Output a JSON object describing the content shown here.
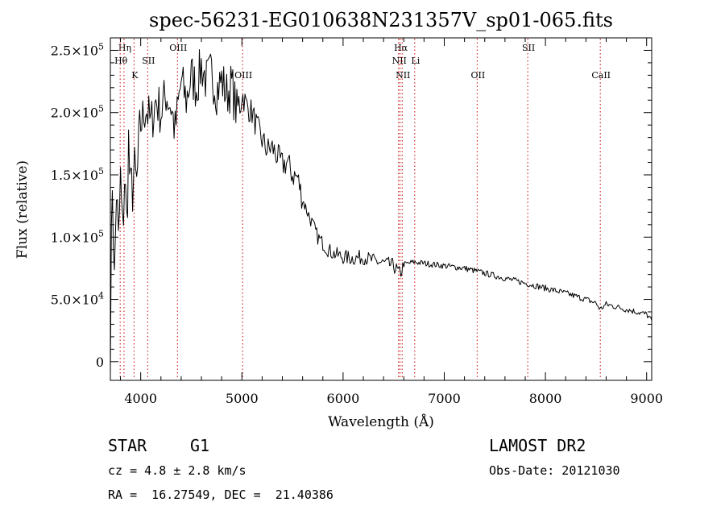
{
  "chart_data": {
    "type": "line",
    "title": "spec-56231-EG010638N231357V_sp01-065.fits",
    "xlabel": "Wavelength (Å)",
    "ylabel": "Flux (relative)",
    "xlim": [
      3700,
      9050
    ],
    "ylim": [
      -15000,
      260000
    ],
    "x_ticks": [
      4000,
      5000,
      6000,
      7000,
      8000,
      9000
    ],
    "x_tick_labels": [
      "4000",
      "5000",
      "6000",
      "7000",
      "8000",
      "9000"
    ],
    "y_ticks": [
      {
        "value": 0,
        "mantissa": "0",
        "exponent": ""
      },
      {
        "value": 50000,
        "mantissa": "5.0×10",
        "exponent": "4"
      },
      {
        "value": 100000,
        "mantissa": "1.0×10",
        "exponent": "5"
      },
      {
        "value": 150000,
        "mantissa": "1.5×10",
        "exponent": "5"
      },
      {
        "value": 200000,
        "mantissa": "2.0×10",
        "exponent": "5"
      },
      {
        "value": 250000,
        "mantissa": "2.5×10",
        "exponent": "5"
      }
    ],
    "line_color": "#000000",
    "marker_line_color": "#cc0000",
    "spectrum": {
      "x": [
        3700,
        3720,
        3740,
        3760,
        3780,
        3800,
        3820,
        3840,
        3860,
        3880,
        3900,
        3930,
        3960,
        4000,
        4050,
        4100,
        4150,
        4200,
        4250,
        4300,
        4340,
        4400,
        4450,
        4500,
        4550,
        4600,
        4650,
        4700,
        4750,
        4800,
        4850,
        4900,
        4950,
        5000,
        5050,
        5100,
        5150,
        5200,
        5250,
        5300,
        5350,
        5400,
        5450,
        5500,
        5550,
        5600,
        5650,
        5700,
        5750,
        5800,
        5850,
        5900,
        6000,
        6100,
        6200,
        6300,
        6400,
        6500,
        6563,
        6600,
        6700,
        6800,
        6900,
        7000,
        7200,
        7400,
        7600,
        7800,
        8000,
        8200,
        8400,
        8500,
        8540,
        8600,
        8700,
        8800,
        8900,
        9000,
        9050
      ],
      "y": [
        20000,
        150000,
        60000,
        140000,
        90000,
        145000,
        100000,
        150000,
        110000,
        175000,
        130000,
        150000,
        140000,
        190000,
        205000,
        190000,
        210000,
        200000,
        215000,
        205000,
        185000,
        225000,
        210000,
        230000,
        220000,
        238000,
        225000,
        232000,
        218000,
        226000,
        215000,
        222000,
        200000,
        215000,
        205000,
        200000,
        188000,
        178000,
        170000,
        172000,
        165000,
        158000,
        160000,
        150000,
        148000,
        130000,
        120000,
        110000,
        100000,
        95000,
        90000,
        87000,
        84000,
        83000,
        84000,
        81000,
        79000,
        77000,
        70000,
        78000,
        80000,
        79000,
        78000,
        77000,
        75000,
        71000,
        67000,
        63000,
        59000,
        55000,
        50000,
        47000,
        42000,
        46000,
        44000,
        42000,
        40000,
        38000,
        33000
      ]
    },
    "line_markers": [
      {
        "label": "Hη",
        "x": 3835,
        "row": 0
      },
      {
        "label": "Hθ",
        "x": 3797,
        "row": 1
      },
      {
        "label": "K",
        "x": 3934,
        "row": 2
      },
      {
        "label": "SII",
        "x": 4069,
        "row": 1
      },
      {
        "label": "OIII",
        "x": 4363,
        "row": 0
      },
      {
        "label": "OIII",
        "x": 5007,
        "row": 2
      },
      {
        "label": "Hα",
        "x": 6563,
        "row": 0
      },
      {
        "label": "NII",
        "x": 6548,
        "row": 1
      },
      {
        "label": "Li",
        "x": 6708,
        "row": 1
      },
      {
        "label": "NII",
        "x": 6584,
        "row": 2
      },
      {
        "label": "OII",
        "x": 7325,
        "row": 2
      },
      {
        "label": "SII",
        "x": 7825,
        "row": 0
      },
      {
        "label": "CaII",
        "x": 8542,
        "row": 2
      }
    ]
  },
  "info": {
    "class_label": "STAR",
    "subclass_label": "G1",
    "cz_line": "cz = 4.8 ± 2.8 km/s",
    "coords_line": "RA =  16.27549, DEC =  21.40386",
    "survey_label": "LAMOST DR2",
    "obs_date_line": "Obs-Date: 20121030"
  }
}
